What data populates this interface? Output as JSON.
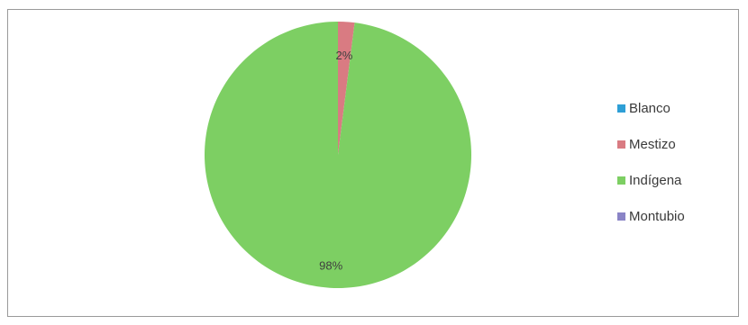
{
  "chart_data": {
    "type": "pie",
    "slices": [
      {
        "label": "Blanco",
        "value": 0,
        "color": "#2e9fd6"
      },
      {
        "label": "Mestizo",
        "value": 2,
        "color": "#d97b82"
      },
      {
        "label": "Indígena",
        "value": 98,
        "color": "#7dcf63"
      },
      {
        "label": "Montubio",
        "value": 0,
        "color": "#8a84c6"
      }
    ],
    "data_labels": [
      {
        "series": "Mestizo",
        "text": "2%"
      },
      {
        "series": "Indígena",
        "text": "98%"
      }
    ],
    "legend_position": "right",
    "legend": [
      "Blanco",
      "Mestizo",
      "Indígena",
      "Montubio"
    ]
  }
}
